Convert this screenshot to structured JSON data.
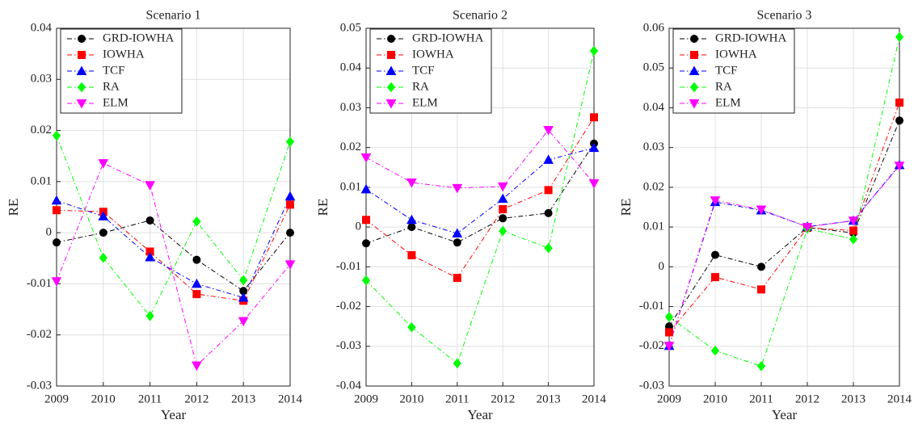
{
  "chart_data": [
    {
      "type": "line",
      "title": "Scenario 1",
      "x_label": "Year",
      "y_label": "RE",
      "x": [
        2009,
        2010,
        2011,
        2012,
        2013,
        2014
      ],
      "xlim": [
        2009,
        2014
      ],
      "xticks": [
        2009,
        2010,
        2011,
        2012,
        2013,
        2014
      ],
      "ylim": [
        -0.03,
        0.04
      ],
      "yticks": [
        -0.03,
        -0.02,
        -0.01,
        0,
        0.01,
        0.02,
        0.03,
        0.04
      ],
      "grid": true,
      "legend": "top-left",
      "series": [
        {
          "name": "GRD-IOWHA",
          "color": "#000000",
          "marker": "circle",
          "values": [
            -0.0019,
            0,
            0.0024,
            -0.0053,
            -0.0114,
            0
          ]
        },
        {
          "name": "IOWHA",
          "color": "#ff0000",
          "marker": "square",
          "values": [
            0.0044,
            0.0041,
            -0.0037,
            -0.012,
            -0.0133,
            0.0055
          ]
        },
        {
          "name": "TCF",
          "color": "#0000ff",
          "marker": "triangle-up",
          "values": [
            0.0063,
            0.0032,
            -0.0048,
            -0.01,
            -0.0127,
            0.0071
          ]
        },
        {
          "name": "RA",
          "color": "#00ff00",
          "marker": "diamond",
          "values": [
            0.019,
            -0.0049,
            -0.0163,
            0.0022,
            -0.0093,
            0.0178
          ]
        },
        {
          "name": "ELM",
          "color": "#ff00ff",
          "marker": "triangle-down",
          "values": [
            -0.0095,
            0.0136,
            0.0093,
            -0.026,
            -0.0173,
            -0.0062
          ]
        }
      ]
    },
    {
      "type": "line",
      "title": "Scenario 2",
      "x_label": "Year",
      "y_label": "RE",
      "x": [
        2009,
        2010,
        2011,
        2012,
        2013,
        2014
      ],
      "xlim": [
        2009,
        2014
      ],
      "xticks": [
        2009,
        2010,
        2011,
        2012,
        2013,
        2014
      ],
      "ylim": [
        -0.04,
        0.05
      ],
      "yticks": [
        -0.04,
        -0.03,
        -0.02,
        -0.01,
        0,
        0.01,
        0.02,
        0.03,
        0.04,
        0.05
      ],
      "grid": true,
      "legend": "top-left",
      "series": [
        {
          "name": "GRD-IOWHA",
          "color": "#000000",
          "marker": "circle",
          "values": [
            -0.0041,
            0,
            -0.0039,
            0.0022,
            0.0035,
            0.021
          ]
        },
        {
          "name": "IOWHA",
          "color": "#ff0000",
          "marker": "square",
          "values": [
            0.0018,
            -0.0071,
            -0.0128,
            0.0045,
            0.0093,
            0.0276
          ]
        },
        {
          "name": "TCF",
          "color": "#0000ff",
          "marker": "triangle-up",
          "values": [
            0.0095,
            0.0018,
            -0.0016,
            0.0071,
            0.0169,
            0.0199
          ]
        },
        {
          "name": "RA",
          "color": "#00ff00",
          "marker": "diamond",
          "values": [
            -0.0134,
            -0.0252,
            -0.0343,
            -0.001,
            -0.0053,
            0.0443
          ]
        },
        {
          "name": "ELM",
          "color": "#ff00ff",
          "marker": "triangle-down",
          "values": [
            0.0175,
            0.0112,
            0.0098,
            0.0102,
            0.0244,
            0.011
          ]
        }
      ]
    },
    {
      "type": "line",
      "title": "Scenario 3",
      "x_label": "Year",
      "y_label": "RE",
      "x": [
        2009,
        2010,
        2011,
        2012,
        2013,
        2014
      ],
      "xlim": [
        2009,
        2014
      ],
      "xticks": [
        2009,
        2010,
        2011,
        2012,
        2013,
        2014
      ],
      "ylim": [
        -0.03,
        0.06
      ],
      "yticks": [
        -0.03,
        -0.02,
        -0.01,
        0,
        0.01,
        0.02,
        0.03,
        0.04,
        0.05,
        0.06
      ],
      "grid": true,
      "legend": "top-left",
      "series": [
        {
          "name": "GRD-IOWHA",
          "color": "#000000",
          "marker": "circle",
          "values": [
            -0.015,
            0.003,
            0,
            0.0099,
            0.0085,
            0.0368
          ]
        },
        {
          "name": "IOWHA",
          "color": "#ff0000",
          "marker": "square",
          "values": [
            -0.0165,
            -0.0026,
            -0.0057,
            0.0098,
            0.0091,
            0.0413
          ]
        },
        {
          "name": "TCF",
          "color": "#0000ff",
          "marker": "triangle-up",
          "values": [
            -0.0199,
            0.0163,
            0.0142,
            0.0101,
            0.0116,
            0.0256
          ]
        },
        {
          "name": "RA",
          "color": "#00ff00",
          "marker": "diamond",
          "values": [
            -0.0126,
            -0.0211,
            -0.025,
            0.0096,
            0.0069,
            0.0578
          ]
        },
        {
          "name": "ELM",
          "color": "#ff00ff",
          "marker": "triangle-down",
          "values": [
            -0.0199,
            0.0167,
            0.0144,
            0.01,
            0.0116,
            0.0254
          ]
        }
      ]
    }
  ]
}
